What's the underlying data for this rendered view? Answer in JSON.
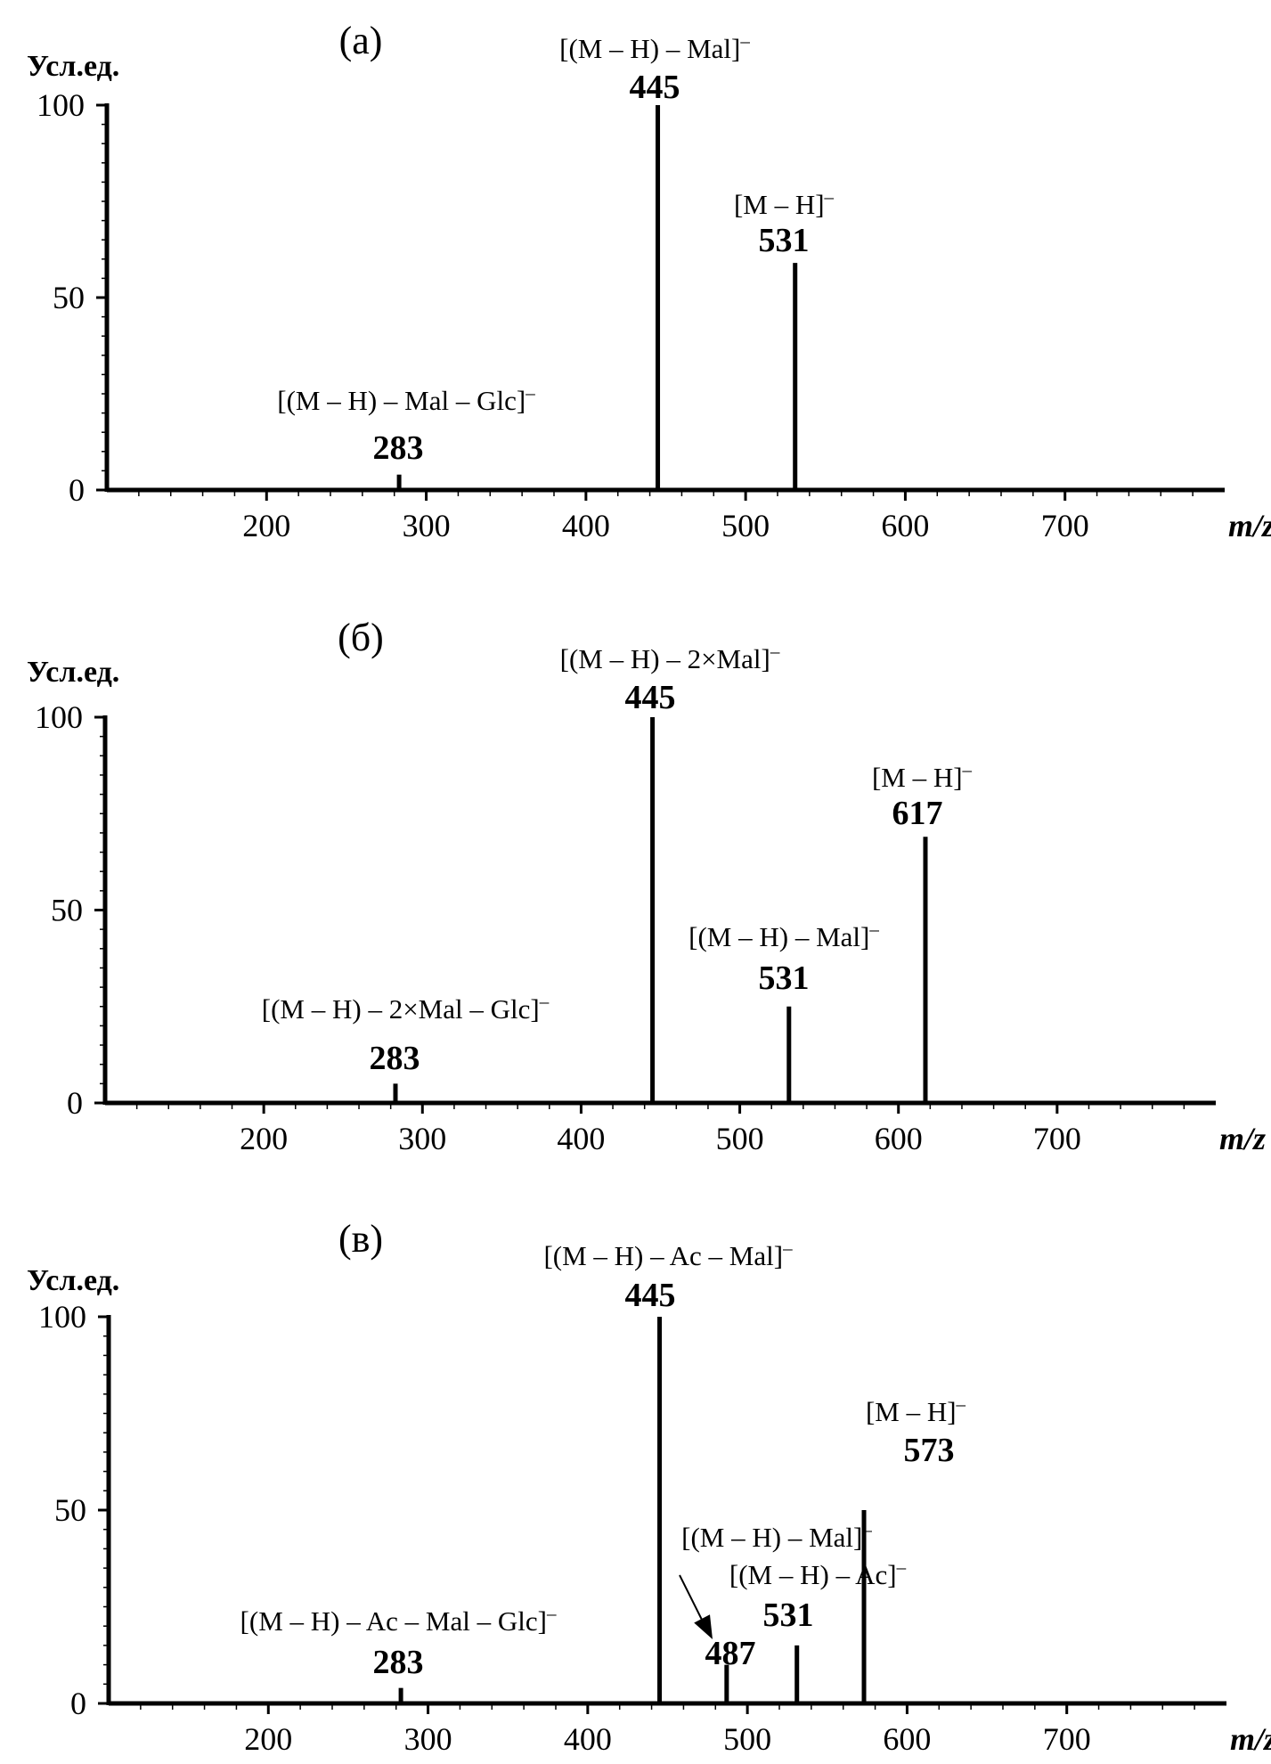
{
  "chart_data": [
    {
      "type": "bar",
      "panel": "(а)",
      "ylabel": "Усл.ед.",
      "xlabel": "m/z",
      "xlim": [
        100,
        800
      ],
      "ylim": [
        0,
        100
      ],
      "x_ticks": [
        "200",
        "300",
        "400",
        "500",
        "600",
        "700"
      ],
      "y_ticks": [
        "0",
        "50",
        "100"
      ],
      "peaks": [
        {
          "mz": 283,
          "intensity": 4,
          "ion": "[(M – H) – Mal – Glc]",
          "charge": "–",
          "label": "283"
        },
        {
          "mz": 445,
          "intensity": 100,
          "ion": "[(M – H) – Mal]",
          "charge": "–",
          "label": "445"
        },
        {
          "mz": 531,
          "intensity": 59,
          "ion": "[M – H]",
          "charge": "–",
          "label": "531"
        }
      ]
    },
    {
      "type": "bar",
      "panel": "(б)",
      "ylabel": "Усл.ед.",
      "xlabel": "m/z",
      "xlim": [
        100,
        800
      ],
      "ylim": [
        0,
        100
      ],
      "x_ticks": [
        "200",
        "300",
        "400",
        "500",
        "600",
        "700"
      ],
      "y_ticks": [
        "0",
        "50",
        "100"
      ],
      "peaks": [
        {
          "mz": 283,
          "intensity": 5,
          "ion": "[(M – H) – 2×Mal – Glc]",
          "charge": "–",
          "label": "283"
        },
        {
          "mz": 445,
          "intensity": 100,
          "ion": "[(M – H) – 2×Mal]",
          "charge": "–",
          "label": "445"
        },
        {
          "mz": 531,
          "intensity": 25,
          "ion": "[(M – H) – Mal]",
          "charge": "–",
          "label": "531"
        },
        {
          "mz": 617,
          "intensity": 69,
          "ion": "[M – H]",
          "charge": "–",
          "label": "617"
        }
      ]
    },
    {
      "type": "bar",
      "panel": "(в)",
      "ylabel": "Усл.ед.",
      "xlabel": "m/z",
      "xlim": [
        100,
        800
      ],
      "ylim": [
        0,
        100
      ],
      "x_ticks": [
        "200",
        "300",
        "400",
        "500",
        "600",
        "700"
      ],
      "y_ticks": [
        "0",
        "50",
        "100"
      ],
      "peaks": [
        {
          "mz": 283,
          "intensity": 4,
          "ion": "[(M – H) – Ac – Mal – Glc]",
          "charge": "–",
          "label": "283"
        },
        {
          "mz": 445,
          "intensity": 100,
          "ion": "[(M – H) – Ac – Mal]",
          "charge": "–",
          "label": "445"
        },
        {
          "mz": 487,
          "intensity": 10,
          "ion": "[(M – H) – Mal]",
          "charge": "–",
          "label": "487"
        },
        {
          "mz": 531,
          "intensity": 15,
          "ion": "[(M – H) – Ac]",
          "charge": "–",
          "label": "531"
        },
        {
          "mz": 573,
          "intensity": 50,
          "ion": "[M – H]",
          "charge": "–",
          "label": "573"
        }
      ]
    }
  ]
}
